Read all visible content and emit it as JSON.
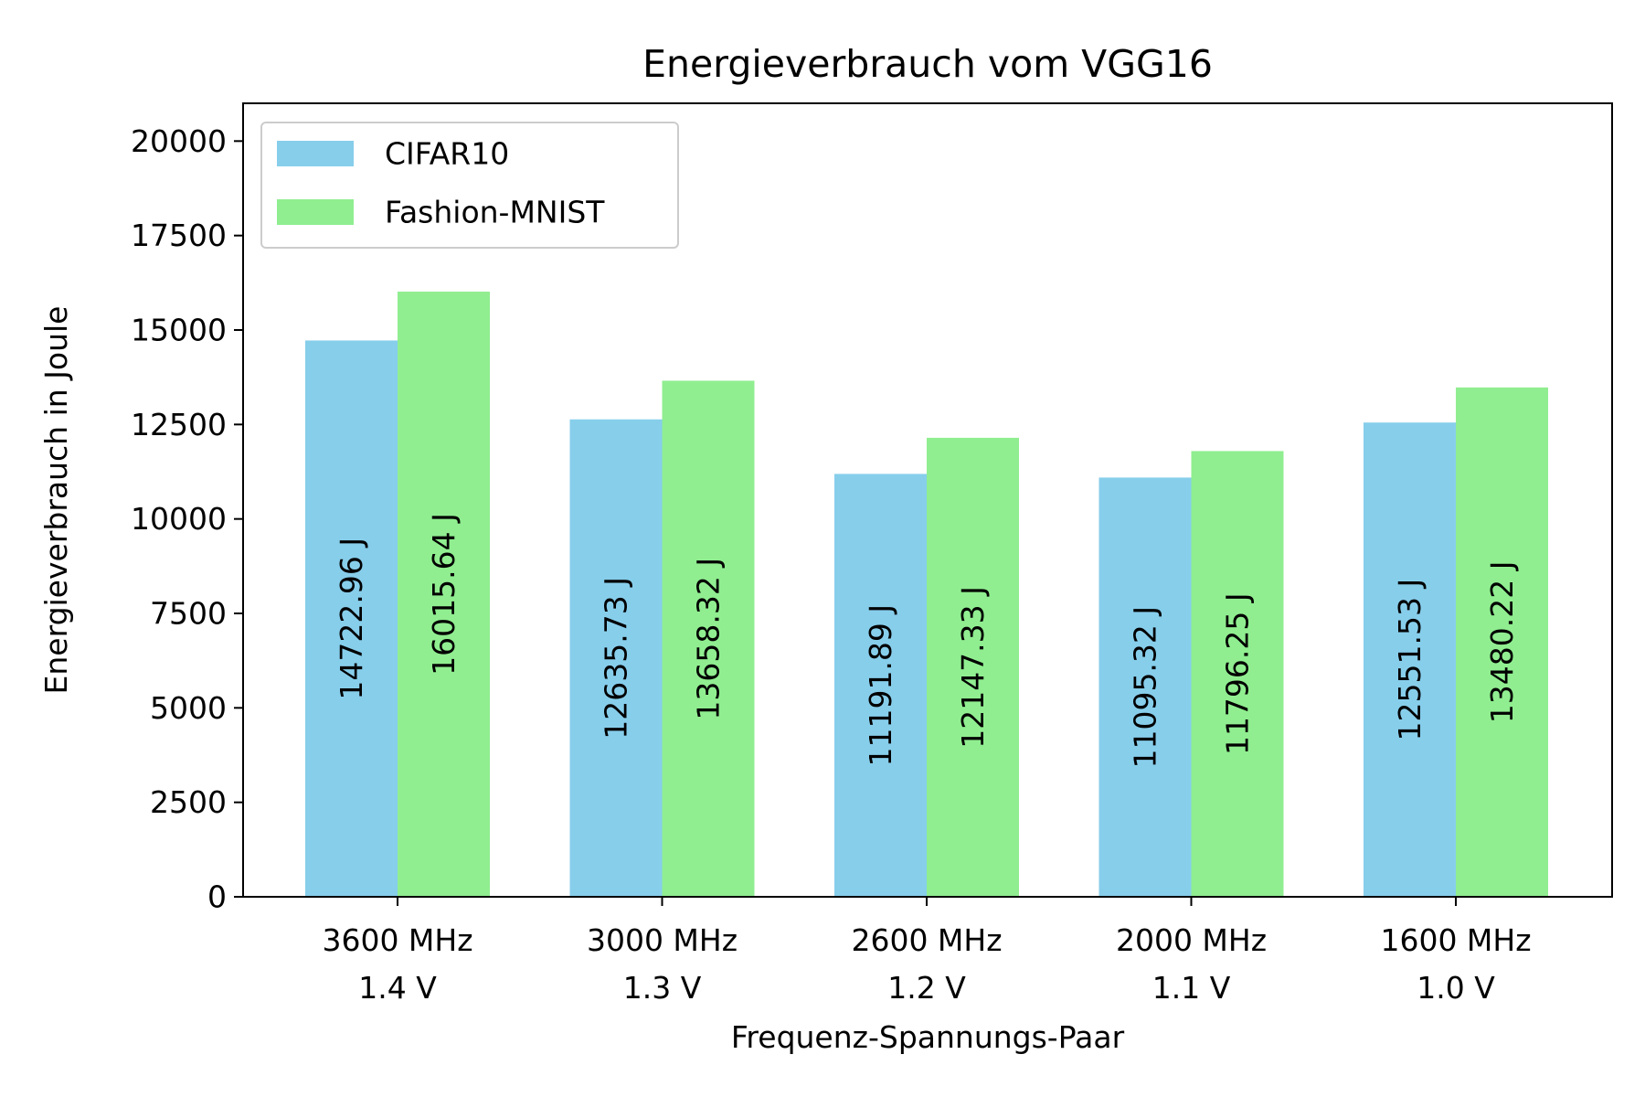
{
  "chart_data": {
    "type": "bar",
    "title": "Energieverbrauch vom VGG16",
    "xlabel": "Frequenz-Spannungs-Paar",
    "ylabel": "Energieverbrauch in Joule",
    "categories": [
      [
        "3600 MHz",
        "1.4 V"
      ],
      [
        "3000 MHz",
        "1.3 V"
      ],
      [
        "2600 MHz",
        "1.2 V"
      ],
      [
        "2000 MHz",
        "1.1 V"
      ],
      [
        "1600 MHz",
        "1.0 V"
      ]
    ],
    "series": [
      {
        "name": "CIFAR10",
        "color": "#87ceeb",
        "values": [
          14722.96,
          12635.73,
          11191.89,
          11095.32,
          12551.53
        ],
        "labels": [
          "14722.96 J",
          "12635.73 J",
          "11191.89 J",
          "11095.32 J",
          "12551.53 J"
        ]
      },
      {
        "name": "Fashion-MNIST",
        "color": "#90ee90",
        "values": [
          16015.64,
          13658.32,
          12147.33,
          11796.25,
          13480.22
        ],
        "labels": [
          "16015.64 J",
          "13658.32 J",
          "12147.33 J",
          "11796.25 J",
          "13480.22 J"
        ]
      }
    ],
    "ylim": [
      0,
      21000
    ],
    "yticks": [
      0,
      2500,
      5000,
      7500,
      10000,
      12500,
      15000,
      17500,
      20000
    ],
    "grid": false,
    "legend_position": "top-left"
  }
}
